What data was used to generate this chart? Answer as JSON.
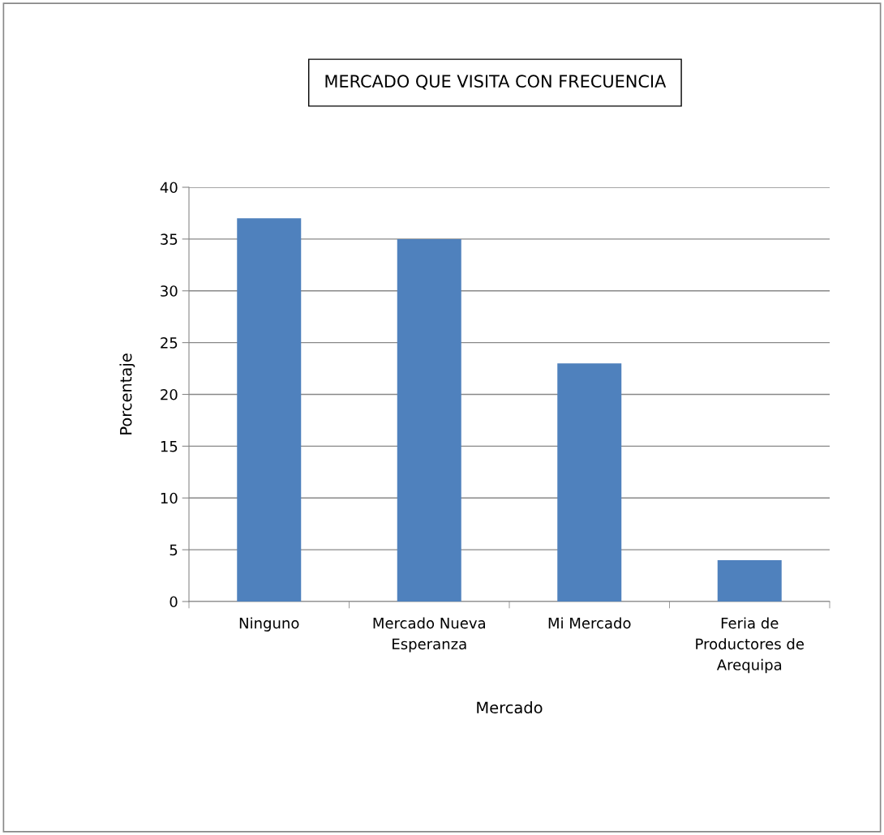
{
  "chart_data": {
    "type": "bar",
    "title": "MERCADO QUE VISITA CON FRECUENCIA",
    "xlabel": "Mercado",
    "ylabel": "Porcentaje",
    "categories": [
      "Ninguno",
      "Mercado Nueva\nEsperanza",
      "Mi Mercado",
      "Feria de\nProductores de\nArequipa"
    ],
    "values": [
      37,
      35,
      23,
      4
    ],
    "color": "#4f81bd",
    "ylim": [
      0,
      40
    ],
    "yticks": [
      0,
      5,
      10,
      15,
      20,
      25,
      30,
      35,
      40
    ],
    "grid": "y",
    "legend": false
  }
}
